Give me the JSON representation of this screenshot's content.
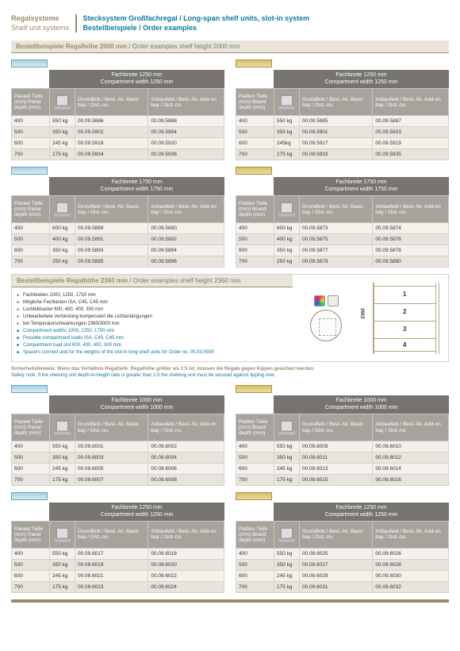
{
  "header": {
    "left_de": "Regalsysteme",
    "left_en": "Shelf unit systems",
    "right_line1": "Stecksystem Großfachregal / Long-span shelf units, slot-in system",
    "right_line2": "Bestellbeispiele / Order examples"
  },
  "section_2000": {
    "title_de": "Bestellbeispiele Regalhöhe 2000 mm",
    "title_en": " / Order examples shelf height 2000 mm"
  },
  "section_2360": {
    "title_de": "Bestellbeispiele Regalhöhe 2360 mm",
    "title_en": " / Order examples shelf height 2360 mm"
  },
  "common_headers": {
    "panel_depth": "Paneel Tiefe (mm)\nPanel depth (mm)",
    "board_depth": "Platten Tiefe (mm)\nBoard depth (mm)",
    "basic": "Grundfeld / Best.-Nr.\nBasic bay / Ord.-no.",
    "addon": "Anbaufeld / Best.-Nr.\nAdd-on bay / Ord.-no."
  },
  "fb_labels": {
    "1250_de": "Fachbreite 1250 mm",
    "1250_en": "Compartment width 1250 mm",
    "1750_de": "Fachbreite 1750 mm",
    "1750_en": "Compartment width 1750 mm",
    "1000_de": "Fachbreite 1000 mm",
    "1000_en": "Compartment width 1000 mm"
  },
  "tables": {
    "t2000_1250_panel": [
      {
        "d": "400",
        "w": "550 kg",
        "g": "00.09.5886",
        "a": "00.09.5888"
      },
      {
        "d": "500",
        "w": "350 kg",
        "g": "00.09.5902",
        "a": "00.09.5904"
      },
      {
        "d": "600",
        "w": "245 kg",
        "g": "00.09.5918",
        "a": "00.09.5920"
      },
      {
        "d": "700",
        "w": "175 kg",
        "g": "00.09.5934",
        "a": "00.09.5936"
      }
    ],
    "t2000_1250_board": [
      {
        "d": "400",
        "w": "550 kg",
        "g": "00.09.5885",
        "a": "00.09.5887"
      },
      {
        "d": "500",
        "w": "350 kg",
        "g": "00.09.5901",
        "a": "00.09.5903"
      },
      {
        "d": "600",
        "w": "245kg",
        "g": "00.09.5917",
        "a": "00.09.5919"
      },
      {
        "d": "700",
        "w": "175 kg",
        "g": "00.09.5933",
        "a": "00.09.5935"
      }
    ],
    "t2000_1750_panel": [
      {
        "d": "400",
        "w": "600 kg",
        "g": "00.09.5889",
        "a": "00.09.5890"
      },
      {
        "d": "500",
        "w": "400 kg",
        "g": "00.09.5891",
        "a": "00.09.5892"
      },
      {
        "d": "600",
        "w": "350 kg",
        "g": "00.09.5893",
        "a": "00.09.5894"
      },
      {
        "d": "700",
        "w": "250 kg",
        "g": "00.09.5895",
        "a": "00.09.5896"
      }
    ],
    "t2000_1750_board": [
      {
        "d": "400",
        "w": "600 kg",
        "g": "00.09.5873",
        "a": "00.09.5874"
      },
      {
        "d": "500",
        "w": "400 kg",
        "g": "00.09.5875",
        "a": "00.09.5876"
      },
      {
        "d": "600",
        "w": "350 kg",
        "g": "00.09.5877",
        "a": "00.09.5878"
      },
      {
        "d": "700",
        "w": "250 kg",
        "g": "00.09.5879",
        "a": "00.09.5880"
      }
    ],
    "t2360_1000_panel": [
      {
        "d": "400",
        "w": "550 kg",
        "g": "00.09.6001",
        "a": "00.09.6002"
      },
      {
        "d": "500",
        "w": "350 kg",
        "g": "00.09.6003",
        "a": "00.09.6004"
      },
      {
        "d": "600",
        "w": "245 kg",
        "g": "00.09.6005",
        "a": "00.09.6006"
      },
      {
        "d": "700",
        "w": "175 kg",
        "g": "00.09.6007",
        "a": "00.09.6008"
      }
    ],
    "t2360_1000_board": [
      {
        "d": "400",
        "w": "550 kg",
        "g": "00.09.6009",
        "a": "00.09.6010"
      },
      {
        "d": "500",
        "w": "350 kg",
        "g": "00.09.6011",
        "a": "00.09.6012"
      },
      {
        "d": "600",
        "w": "245 kg",
        "g": "00.09.6013",
        "a": "00.09.6014"
      },
      {
        "d": "700",
        "w": "175 kg",
        "g": "00.09.6015",
        "a": "00.09.6016"
      }
    ],
    "t2360_1250_panel": [
      {
        "d": "400",
        "w": "550 kg",
        "g": "00.09.6017",
        "a": "00.09.6018"
      },
      {
        "d": "500",
        "w": "350 kg",
        "g": "00.09.6019",
        "a": "00.09.6020"
      },
      {
        "d": "600",
        "w": "245 kg",
        "g": "00.09.6021",
        "a": "00.09.6022"
      },
      {
        "d": "700",
        "w": "175 kg",
        "g": "00.09.6023",
        "a": "00.09.6024"
      }
    ],
    "t2360_1250_board": [
      {
        "d": "400",
        "w": "550 kg",
        "g": "00.09.6025",
        "a": "00.09.6026"
      },
      {
        "d": "500",
        "w": "350 kg",
        "g": "00.09.6027",
        "a": "00.09.6028"
      },
      {
        "d": "600",
        "w": "245 kg",
        "g": "00.09.6029",
        "a": "00.09.6030"
      },
      {
        "d": "700",
        "w": "175 kg",
        "g": "00.09.6031",
        "a": "00.09.6032"
      }
    ]
  },
  "middle": {
    "bullets_de": [
      "Fachbreiten 1000, 1250, 1750 mm",
      "Mögliche Fachlasten ISA, C45, C45 mm",
      "Lochbildraster 600, 400, 400, 300 mm",
      "Unbearbeitete Verbindung kompensiert die Lichtanlängungen",
      "bei Temperaturschwankungen 2360/3000 mm"
    ],
    "bullets_en": [
      "Compartment widths 1000, 1250, 1750 mm",
      "Possible compartment loads ISA, C45, C45 mm",
      "Compartment load slot 600, 400, 400, 300 mm",
      "Spacers connect and for the weights of the slot-in long-shelf units for Order no. 00.03.5935"
    ],
    "diagram_label": "2360",
    "diagram_nums": [
      "1",
      "2",
      "3",
      "4"
    ]
  },
  "note": {
    "de": "Sicherheitshinweis: Wenn das Verhältnis Regaltiefe: Regalhöhe größer als 1:5 ist, müssen die Regale gegen Kippen gesichert werden.",
    "en": "Safety note: If the shelving unit depth-to-height ratio is greater than 1:5 the shelving unit must be secured against tipping over."
  },
  "colors": {
    "accent_brown": "#9a8c6b",
    "accent_blue": "#0b7aa0",
    "head_grey": "#77736e",
    "subhead_grey": "#a7a39c",
    "row_light": "#f3f1ec",
    "row_dark": "#e7e4dc"
  }
}
